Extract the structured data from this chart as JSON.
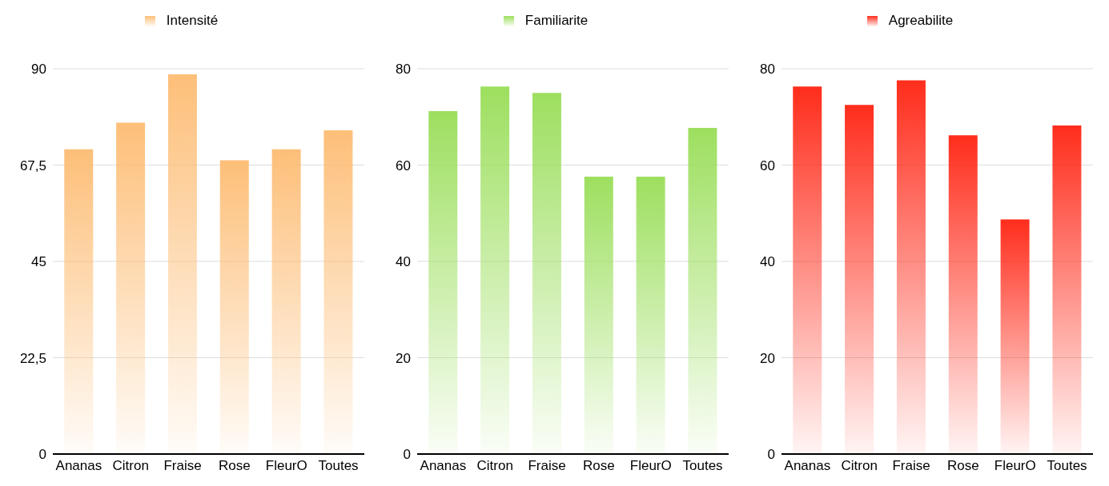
{
  "chart_data": [
    {
      "type": "bar",
      "categories": [
        "Ananas",
        "Citron",
        "Fraise",
        "Rose",
        "FleurO",
        "Toutes"
      ],
      "series": [
        {
          "name": "Intensité",
          "color": "#fdbf79",
          "values": [
            71.2,
            77.4,
            88.7,
            68.6,
            71.2,
            75.6
          ]
        }
      ],
      "ylim": [
        0,
        90
      ],
      "yticks": [
        0,
        {
          "value": 22.5,
          "label": "22,5"
        },
        45,
        {
          "value": 67.5,
          "label": "67,5"
        },
        90
      ],
      "grid": "y",
      "legend": "top"
    },
    {
      "type": "bar",
      "categories": [
        "Ananas",
        "Citron",
        "Fraise",
        "Rose",
        "FleurO",
        "Toutes"
      ],
      "series": [
        {
          "name": "Familiarite",
          "color": "#9ddf5f",
          "values": [
            71.2,
            76.3,
            75.0,
            57.6,
            57.6,
            67.7
          ]
        }
      ],
      "ylim": [
        0,
        80
      ],
      "yticks": [
        0,
        20,
        40,
        60,
        80
      ],
      "grid": "y",
      "legend": "top"
    },
    {
      "type": "bar",
      "categories": [
        "Ananas",
        "Citron",
        "Fraise",
        "Rose",
        "FleurO",
        "Toutes"
      ],
      "series": [
        {
          "name": "Agreabilite",
          "color": "#ff2d1c",
          "values": [
            76.3,
            72.5,
            77.6,
            66.2,
            48.7,
            68.2
          ]
        }
      ],
      "ylim": [
        0,
        80
      ],
      "yticks": [
        0,
        20,
        40,
        60,
        80
      ],
      "grid": "y",
      "legend": "top"
    }
  ]
}
